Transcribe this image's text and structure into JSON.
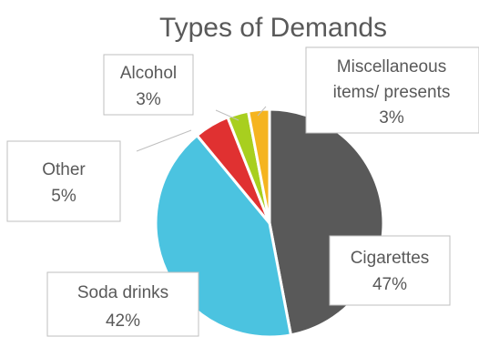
{
  "chart_data": {
    "type": "pie",
    "title": "Types of Demands",
    "slices": [
      {
        "label": "Cigarettes",
        "percent_label": "47%",
        "value": 47,
        "color": "#595959"
      },
      {
        "label": "Soda drinks",
        "percent_label": "42%",
        "value": 42,
        "color": "#4bc3e0"
      },
      {
        "label": "Other",
        "percent_label": "5%",
        "value": 5,
        "color": "#e03131"
      },
      {
        "label": "Alcohol",
        "percent_label": "3%",
        "value": 3,
        "color": "#a8cf1f"
      },
      {
        "label": "Miscellaneous items/ presents",
        "label_lines": [
          "Miscellaneous",
          "items/ presents"
        ],
        "percent_label": "3%",
        "value": 3,
        "color": "#f5b41f"
      }
    ],
    "start": "12 o'clock",
    "direction": "clockwise",
    "legend": "none (callout data labels)"
  }
}
